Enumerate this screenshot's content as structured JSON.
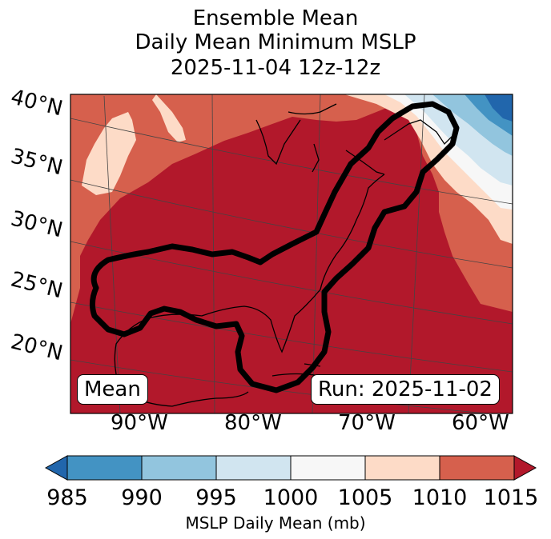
{
  "title": {
    "line1": "Ensemble Mean",
    "line2": "Daily Mean Minimum MSLP",
    "line3": "2025-11-04 12z-12z"
  },
  "map": {
    "lat_labels": [
      "40°N",
      "35°N",
      "30°N",
      "25°N",
      "20°N"
    ],
    "lon_labels": [
      "90°W",
      "80°W",
      "70°W",
      "60°W"
    ],
    "mean_box": "Mean",
    "run_box": "Run: 2025-11-02",
    "fill_colors": {
      "lt985": "#2166ac",
      "c985_990": "#4393c3",
      "c990_995": "#92c5de",
      "c995_1000": "#d1e5f0",
      "c1000_1005": "#f7f7f7",
      "c1005_1010": "#fddbc7",
      "c1010_1015": "#d6604d",
      "gt1015": "#b2182b"
    }
  },
  "colorbar": {
    "ticks": [
      "985",
      "990",
      "995",
      "1000",
      "1005",
      "1010",
      "1015"
    ],
    "label": "MSLP Daily Mean (mb)",
    "colors": [
      "#4393c3",
      "#92c5de",
      "#d1e5f0",
      "#f7f7f7",
      "#fddbc7",
      "#d6604d"
    ],
    "under_color": "#2166ac",
    "over_color": "#b2182b"
  }
}
